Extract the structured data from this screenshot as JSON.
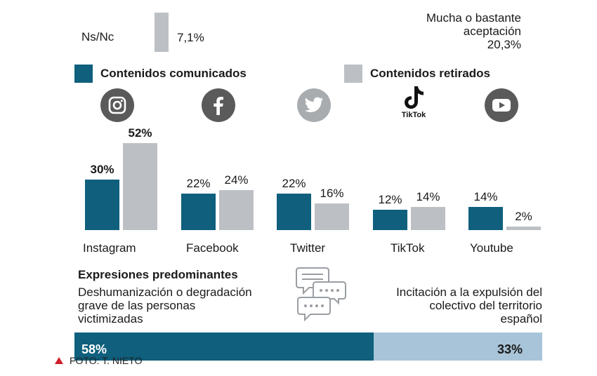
{
  "top": {
    "nsnc_label": "Ns/Nc",
    "nsnc_value": "7,1%",
    "acceptance_line1": "Mucha o bastante",
    "acceptance_line2": "aceptación",
    "acceptance_value": "20,3%"
  },
  "colors": {
    "comunicados": "#0f5f7d",
    "retirados": "#bcc0c4",
    "icon_gray": "#5a5a5a",
    "twitter_gray": "#a9acaf",
    "bottom_right": "#a8c4d8",
    "caption_triangle": "#d0202a"
  },
  "chart_data": {
    "type": "bar",
    "categories": [
      "Instagram",
      "Facebook",
      "Twitter",
      "TikTok",
      "Youtube"
    ],
    "series": [
      {
        "name": "Contenidos comunicados",
        "values": [
          30,
          22,
          22,
          12,
          14
        ],
        "labels": [
          "30%",
          "22%",
          "22%",
          "12%",
          "14%"
        ]
      },
      {
        "name": "Contenidos retirados",
        "values": [
          52,
          24,
          16,
          14,
          2
        ],
        "labels": [
          "52%",
          "24%",
          "16%",
          "14%",
          "2%"
        ]
      }
    ],
    "ylim": [
      0,
      52
    ],
    "legend": "top",
    "icons": [
      "instagram-icon",
      "facebook-icon",
      "twitter-icon",
      "tiktok-icon",
      "youtube-icon"
    ],
    "tiktok_logo_text": "TikTok"
  },
  "expresiones": {
    "title": "Expresiones predominantes",
    "left_line1": "Deshumanización o degradación",
    "left_line2": "grave de las personas",
    "left_line3": "victimizadas",
    "right_line1": "Incitación a la expulsión del",
    "right_line2": "colectivo del territorio",
    "right_line3": "español",
    "left_value": "58%",
    "right_value": "33%",
    "left_fraction": 0.64
  },
  "caption": {
    "text": "FOTO: T. NIETO"
  }
}
